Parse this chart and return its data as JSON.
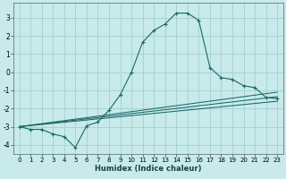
{
  "xlabel": "Humidex (Indice chaleur)",
  "ylabel": "",
  "bg_color": "#c8eaea",
  "grid_color": "#a8d4d4",
  "line_color": "#1a6868",
  "xlim": [
    -0.5,
    23.5
  ],
  "ylim": [
    -4.5,
    3.8
  ],
  "yticks": [
    -4,
    -3,
    -2,
    -1,
    0,
    1,
    2,
    3
  ],
  "xticks": [
    0,
    1,
    2,
    3,
    4,
    5,
    6,
    7,
    8,
    9,
    10,
    11,
    12,
    13,
    14,
    15,
    16,
    17,
    18,
    19,
    20,
    21,
    22,
    23
  ],
  "series_main": {
    "x": [
      0,
      1,
      2,
      3,
      4,
      5,
      6,
      7,
      8,
      9,
      10,
      11,
      12,
      13,
      14,
      15,
      16,
      17,
      18,
      19,
      20,
      21,
      22,
      23
    ],
    "y": [
      -3.0,
      -3.15,
      -3.15,
      -3.4,
      -3.55,
      -4.15,
      -2.95,
      -2.75,
      -2.1,
      -1.25,
      0.0,
      1.65,
      2.3,
      2.65,
      3.25,
      3.25,
      2.85,
      0.25,
      -0.3,
      -0.4,
      -0.75,
      -0.85,
      -1.4,
      -1.45
    ]
  },
  "series_lines": [
    {
      "x": [
        0,
        23
      ],
      "y": [
        -3.0,
        -1.1
      ]
    },
    {
      "x": [
        0,
        23
      ],
      "y": [
        -3.0,
        -1.35
      ]
    },
    {
      "x": [
        0,
        23
      ],
      "y": [
        -3.0,
        -1.6
      ]
    }
  ]
}
